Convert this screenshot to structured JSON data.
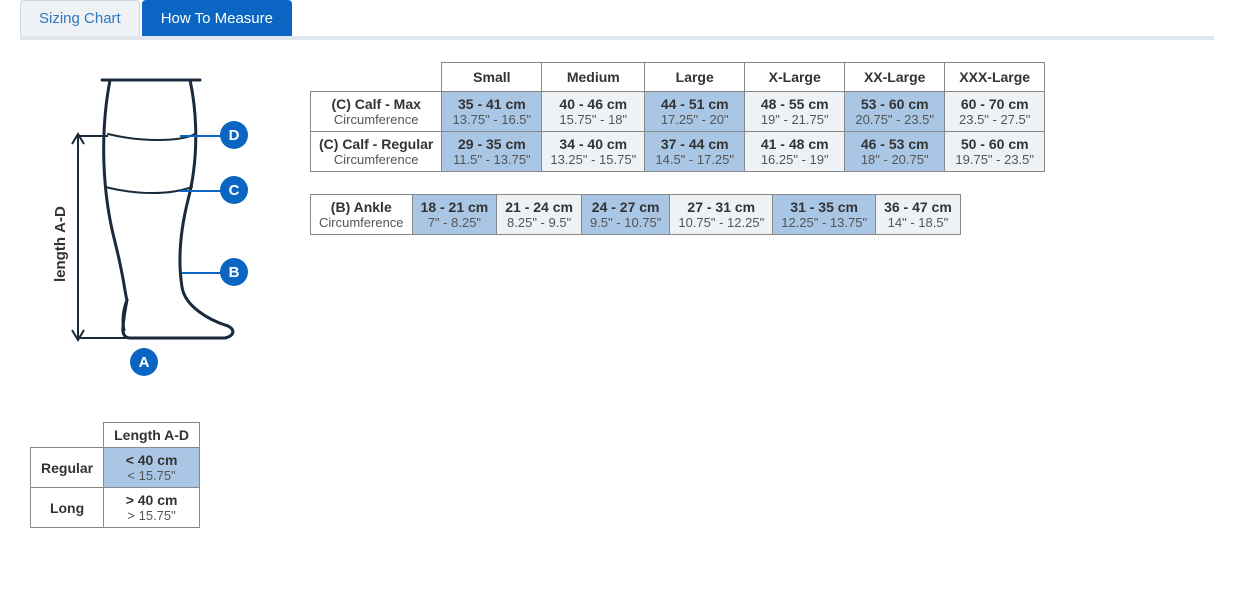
{
  "tabs": {
    "sizing": "Sizing Chart",
    "measure": "How To Measure"
  },
  "diagram": {
    "length_label_prefix": "length ",
    "length_label_bold": "A-D",
    "markers": {
      "a": "A",
      "b": "B",
      "c": "C",
      "d": "D"
    }
  },
  "size_table": {
    "headers": [
      "Small",
      "Medium",
      "Large",
      "X-Large",
      "XX-Large",
      "XXX-Large"
    ],
    "rows": [
      {
        "label_main": "(C) Calf - Max",
        "label_sub": "Circumference",
        "highlight": [
          0,
          2,
          4
        ],
        "cells": [
          {
            "cm": "35 - 41 cm",
            "in": "13.75\" - 16.5\""
          },
          {
            "cm": "40 - 46 cm",
            "in": "15.75\" - 18\""
          },
          {
            "cm": "44 - 51 cm",
            "in": "17.25\" - 20\""
          },
          {
            "cm": "48 - 55 cm",
            "in": "19\" - 21.75\""
          },
          {
            "cm": "53 - 60 cm",
            "in": "20.75\" - 23.5\""
          },
          {
            "cm": "60 - 70 cm",
            "in": "23.5\" - 27.5\""
          }
        ]
      },
      {
        "label_main": "(C) Calf - Regular",
        "label_sub": "Circumference",
        "highlight": [
          0,
          2,
          4
        ],
        "cells": [
          {
            "cm": "29 - 35 cm",
            "in": "11.5\" - 13.75\""
          },
          {
            "cm": "34 - 40 cm",
            "in": "13.25\" - 15.75\""
          },
          {
            "cm": "37 - 44 cm",
            "in": "14.5\" - 17.25\""
          },
          {
            "cm": "41 - 48 cm",
            "in": "16.25\" - 19\""
          },
          {
            "cm": "46 - 53 cm",
            "in": "18\" - 20.75\""
          },
          {
            "cm": "50 - 60 cm",
            "in": "19.75\" - 23.5\""
          }
        ]
      }
    ],
    "rows2": [
      {
        "label_main": "(B) Ankle",
        "label_sub": "Circumference",
        "highlight": [
          0,
          2,
          4
        ],
        "cells": [
          {
            "cm": "18 - 21 cm",
            "in": "7\" - 8.25\""
          },
          {
            "cm": "21 - 24 cm",
            "in": "8.25\" - 9.5\""
          },
          {
            "cm": "24 - 27 cm",
            "in": "9.5\" - 10.75\""
          },
          {
            "cm": "27 - 31 cm",
            "in": "10.75\" - 12.25\""
          },
          {
            "cm": "31 - 35 cm",
            "in": "12.25\" - 13.75\""
          },
          {
            "cm": "36 - 47 cm",
            "in": "14\" - 18.5\""
          }
        ]
      }
    ]
  },
  "length_table": {
    "header": "Length A-D",
    "rows": [
      {
        "label": "Regular",
        "cm": "< 40 cm",
        "in": "< 15.75\"",
        "hl": true
      },
      {
        "label": "Long",
        "cm": "> 40 cm",
        "in": "> 15.75\"",
        "hl": false
      }
    ]
  },
  "colors": {
    "accent": "#0a66c2",
    "shade": "#eef2f5",
    "highlight": "#a9c6e4",
    "border": "#888888"
  }
}
